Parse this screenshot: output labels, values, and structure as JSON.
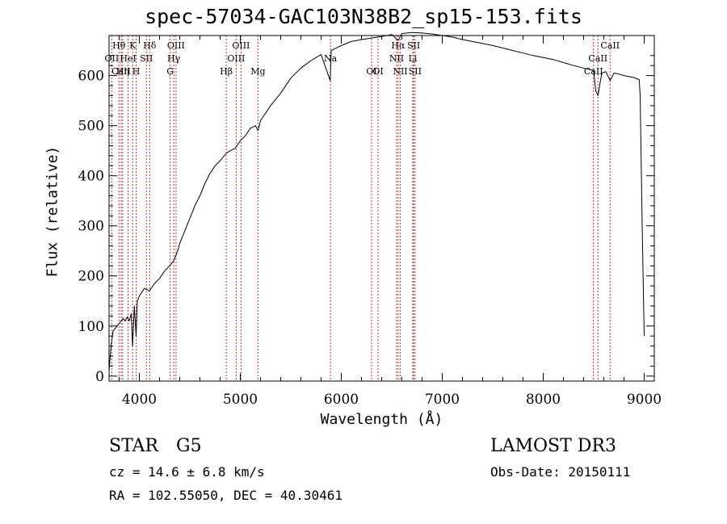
{
  "page": {
    "title": "spec-57034-GAC103N38B2_sp15-153.fits",
    "object_class": "STAR",
    "subclass": "G5",
    "survey": "LAMOST DR3",
    "cz": "cz = 14.6 ± 6.8 km/s",
    "obs_date": "Obs-Date: 20150111",
    "radec": "RA = 102.55050, DEC =  40.30461"
  },
  "chart_data": {
    "type": "line",
    "title": "spec-57034-GAC103N38B2_sp15-153.fits",
    "xlabel": "Wavelength (Å)",
    "ylabel": "Flux (relative)",
    "xlim": [
      3700,
      9100
    ],
    "ylim": [
      -10,
      680
    ],
    "xticks": [
      4000,
      5000,
      6000,
      7000,
      8000,
      9000
    ],
    "yticks": [
      0,
      100,
      200,
      300,
      400,
      500,
      600
    ],
    "series": [
      {
        "name": "flux",
        "x": [
          3700,
          3720,
          3740,
          3760,
          3780,
          3800,
          3820,
          3840,
          3860,
          3880,
          3900,
          3920,
          3933,
          3950,
          3968,
          3980,
          4000,
          4050,
          4101,
          4150,
          4200,
          4250,
          4300,
          4340,
          4380,
          4400,
          4450,
          4500,
          4550,
          4600,
          4650,
          4700,
          4750,
          4800,
          4861,
          4900,
          4950,
          5000,
          5050,
          5100,
          5150,
          5175,
          5200,
          5300,
          5400,
          5500,
          5600,
          5700,
          5800,
          5890,
          5900,
          6000,
          6100,
          6200,
          6300,
          6400,
          6500,
          6563,
          6600,
          6700,
          6800,
          6900,
          7000,
          7100,
          7200,
          7300,
          7400,
          7500,
          7600,
          7700,
          7800,
          7900,
          8000,
          8100,
          8200,
          8300,
          8400,
          8498,
          8520,
          8542,
          8580,
          8620,
          8662,
          8700,
          8750,
          8800,
          8850,
          8900,
          8950,
          8960,
          8980,
          9000
        ],
        "y": [
          10,
          60,
          90,
          95,
          100,
          105,
          110,
          115,
          110,
          118,
          110,
          125,
          60,
          140,
          80,
          150,
          160,
          175,
          170,
          185,
          195,
          210,
          220,
          230,
          250,
          265,
          290,
          315,
          340,
          360,
          385,
          405,
          420,
          430,
          445,
          450,
          455,
          470,
          480,
          495,
          500,
          490,
          510,
          540,
          565,
          595,
          615,
          630,
          642,
          590,
          650,
          660,
          668,
          672,
          675,
          678,
          682,
          670,
          684,
          686,
          685,
          683,
          680,
          677,
          672,
          668,
          664,
          660,
          655,
          650,
          645,
          640,
          636,
          632,
          626,
          620,
          615,
          610,
          570,
          560,
          605,
          608,
          590,
          605,
          603,
          600,
          598,
          596,
          592,
          560,
          300,
          80
        ]
      }
    ],
    "lines": [
      {
        "name": "Hθ",
        "wavelength": 3798,
        "row": 0
      },
      {
        "name": "OII",
        "wavelength": 3727,
        "row": 1
      },
      {
        "name": "Hη",
        "wavelength": 3835,
        "row": 2
      },
      {
        "name": "CaII",
        "wavelength": 3820,
        "row": 2
      },
      {
        "name": "K",
        "wavelength": 3934,
        "row": 0
      },
      {
        "name": "HeI",
        "wavelength": 3889,
        "row": 1
      },
      {
        "name": "H",
        "wavelength": 3968,
        "row": 2
      },
      {
        "name": "Hδ",
        "wavelength": 4102,
        "row": 0
      },
      {
        "name": "SII",
        "wavelength": 4070,
        "row": 1
      },
      {
        "name": "OIII",
        "wavelength": 4363,
        "row": 0
      },
      {
        "name": "Hγ",
        "wavelength": 4341,
        "row": 1
      },
      {
        "name": "G",
        "wavelength": 4305,
        "row": 2
      },
      {
        "name": "OIII",
        "wavelength": 5007,
        "row": 0
      },
      {
        "name": "OIII",
        "wavelength": 4959,
        "row": 1
      },
      {
        "name": "Hβ",
        "wavelength": 4861,
        "row": 2
      },
      {
        "name": "Mg",
        "wavelength": 5175,
        "row": 2
      },
      {
        "name": "Na",
        "wavelength": 5893,
        "row": 1
      },
      {
        "name": "OI",
        "wavelength": 6300,
        "row": 2
      },
      {
        "name": "OI",
        "wavelength": 6364,
        "row": 2
      },
      {
        "name": "Hα",
        "wavelength": 6563,
        "row": 0
      },
      {
        "name": "SII",
        "wavelength": 6717,
        "row": 0
      },
      {
        "name": "NII",
        "wavelength": 6548,
        "row": 1
      },
      {
        "name": "Li",
        "wavelength": 6708,
        "row": 1
      },
      {
        "name": "NII",
        "wavelength": 6584,
        "row": 2
      },
      {
        "name": "SII",
        "wavelength": 6731,
        "row": 2
      },
      {
        "name": "CaII",
        "wavelength": 8662,
        "row": 0
      },
      {
        "name": "CaII",
        "wavelength": 8542,
        "row": 1
      },
      {
        "name": "CaII",
        "wavelength": 8498,
        "row": 2
      }
    ]
  }
}
